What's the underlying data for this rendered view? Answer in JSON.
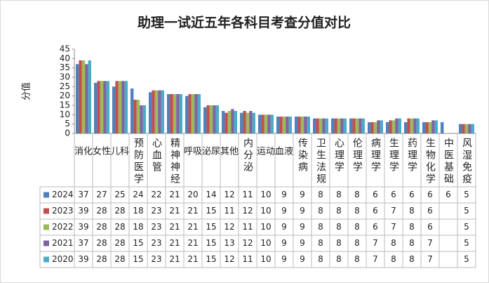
{
  "chart_data": {
    "type": "bar",
    "title": "助理一试近五年各科目考查分值对比",
    "y_label": "分值",
    "categories": [
      "消化",
      "女性",
      "儿科",
      "预防医学",
      "心血管",
      "精神神经",
      "呼吸",
      "泌尿",
      "其他",
      "内分泌",
      "运动",
      "血液",
      "传染病",
      "卫生法规",
      "心理学",
      "伦理学",
      "病理学",
      "生理学",
      "药理学",
      "生物化学",
      "中医基础",
      "风湿免疫"
    ],
    "series": [
      {
        "name": "2024",
        "color": "#4f81bd",
        "values": [
          37,
          27,
          25,
          24,
          22,
          21,
          20,
          14,
          12,
          11,
          10,
          9,
          9,
          8,
          8,
          8,
          6,
          6,
          6,
          6,
          6,
          5
        ]
      },
      {
        "name": "2023",
        "color": "#c0504d",
        "values": [
          39,
          28,
          28,
          18,
          23,
          21,
          21,
          15,
          11,
          12,
          10,
          9,
          9,
          8,
          8,
          8,
          6,
          7,
          8,
          6,
          null,
          5
        ]
      },
      {
        "name": "2022",
        "color": "#9bbb59",
        "values": [
          39,
          28,
          28,
          18,
          23,
          21,
          21,
          15,
          12,
          11,
          10,
          9,
          9,
          8,
          8,
          8,
          6,
          7,
          8,
          6,
          null,
          5
        ]
      },
      {
        "name": "2021",
        "color": "#8064a2",
        "values": [
          37,
          28,
          28,
          15,
          23,
          21,
          21,
          15,
          13,
          12,
          10,
          9,
          9,
          8,
          8,
          8,
          7,
          8,
          8,
          7,
          null,
          5
        ]
      },
      {
        "name": "2020",
        "color": "#4bacc6",
        "values": [
          39,
          28,
          28,
          15,
          23,
          21,
          21,
          15,
          12,
          11,
          10,
          9,
          9,
          8,
          8,
          8,
          7,
          8,
          8,
          7,
          null,
          5
        ]
      }
    ],
    "ylim": [
      0,
      45
    ],
    "yticks": [
      0,
      5,
      10,
      15,
      20,
      25,
      30,
      35,
      40,
      45
    ],
    "grid": false
  }
}
